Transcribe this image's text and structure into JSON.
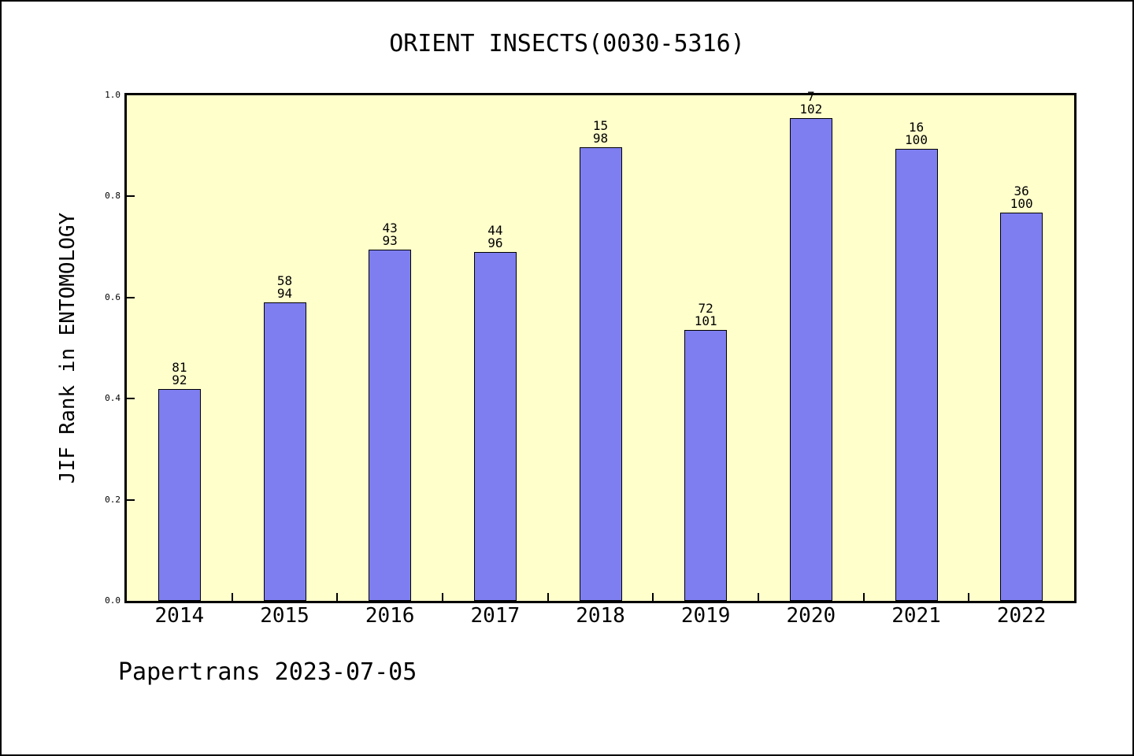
{
  "title": "ORIENT INSECTS(0030-5316)",
  "footer": "Papertrans 2023-07-05",
  "frame": {
    "border_color": "#000000"
  },
  "chart_data": {
    "type": "bar",
    "title": "ORIENT INSECTS(0030-5316)",
    "xlabel": "",
    "ylabel": "JIF Rank in ENTOMOLOGY",
    "categories": [
      "2014",
      "2015",
      "2016",
      "2017",
      "2018",
      "2019",
      "2020",
      "2021",
      "2022"
    ],
    "values": [
      0.419,
      0.59,
      0.695,
      0.69,
      0.897,
      0.536,
      0.955,
      0.894,
      0.768
    ],
    "bar_labels": [
      {
        "line1": "81",
        "line2": "92"
      },
      {
        "line1": "58",
        "line2": "94"
      },
      {
        "line1": "43",
        "line2": "93"
      },
      {
        "line1": "44",
        "line2": "96"
      },
      {
        "line1": "15",
        "line2": "98"
      },
      {
        "line1": "72",
        "line2": "101"
      },
      {
        "line1": "7",
        "line2": "102"
      },
      {
        "line1": "16",
        "line2": "100"
      },
      {
        "line1": "36",
        "line2": "100"
      }
    ],
    "ylim": [
      0.0,
      1.0
    ],
    "yticks": [
      0.0,
      0.2,
      0.4,
      0.6,
      0.8,
      1.0
    ],
    "ytick_labels": [
      "0.0",
      "0.2",
      "0.4",
      "0.6",
      "0.8",
      "1.0"
    ],
    "grid": false,
    "legend_position": "none",
    "colors": {
      "bar_fill": "#7e7ef0",
      "bar_edge": "#000000",
      "plot_background": "#ffffcc",
      "figure_background": "#ffffff",
      "text": "#000000"
    }
  }
}
